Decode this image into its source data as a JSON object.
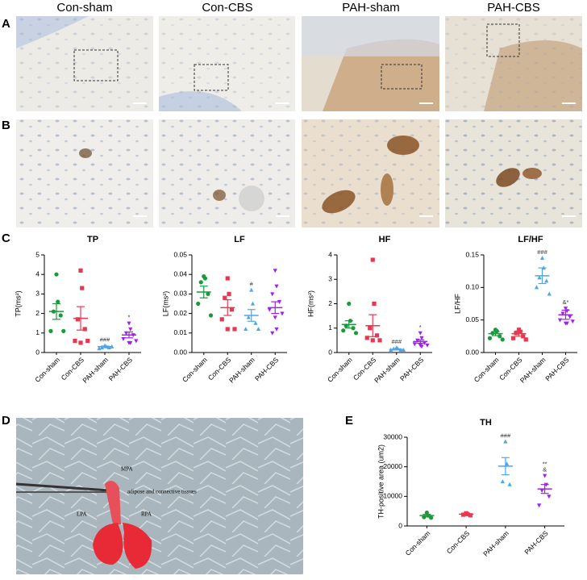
{
  "panels": {
    "letters": [
      "A",
      "B",
      "C",
      "D",
      "E"
    ],
    "columns": [
      "Con-sham",
      "Con-CBS",
      "PAH-sham",
      "PAH-CBS"
    ],
    "photo_labels": [
      "MPA",
      "adipose and connective tissues",
      "LPA",
      "RPA"
    ]
  },
  "chart_data": [
    {
      "type": "dotplot",
      "title": "TP",
      "y_label": "TP(ms²)",
      "ylim": [
        0,
        5
      ],
      "yticks": [
        0,
        1,
        2,
        3,
        4,
        5
      ],
      "series": [
        {
          "name": "Con-sham",
          "color": "#1a9a3a",
          "marker": "circle",
          "values": [
            4.0,
            2.6,
            2.1,
            1.9,
            1.1,
            1.1
          ],
          "mean": 2.1,
          "sem": 0.4
        },
        {
          "name": "Con-CBS",
          "color": "#e8384f",
          "marker": "square",
          "values": [
            4.2,
            3.3,
            1.7,
            1.2,
            0.6,
            0.6,
            0.5
          ],
          "mean": 1.75,
          "sem": 0.6
        },
        {
          "name": "PAH-sham",
          "color": "#4da6e8",
          "marker": "triangle",
          "values": [
            0.35,
            0.3,
            0.25,
            0.25,
            0.2,
            0.3
          ],
          "mean": 0.3,
          "sem": 0.03,
          "annotation": [
            "###"
          ]
        },
        {
          "name": "PAH-CBS",
          "color": "#a020f0",
          "marker": "triangle-down",
          "values": [
            1.5,
            1.2,
            1.0,
            0.9,
            0.7,
            0.6,
            0.5,
            0.5
          ],
          "mean": 0.9,
          "sem": 0.15,
          "annotation": [
            "*"
          ]
        }
      ]
    },
    {
      "type": "dotplot",
      "title": "LF",
      "y_label": "LF(ms²)",
      "ylim": [
        0,
        0.05
      ],
      "yticks": [
        {
          "value": 0,
          "label": "0.00"
        },
        {
          "value": 0.01,
          "label": "0.01"
        },
        {
          "value": 0.02,
          "label": "0.02"
        },
        {
          "value": 0.03,
          "label": "0.03"
        },
        {
          "value": 0.04,
          "label": "0.04"
        },
        {
          "value": 0.05,
          "label": "0.05"
        }
      ],
      "series": [
        {
          "name": "Con-sham",
          "color": "#1a9a3a",
          "marker": "circle",
          "values": [
            0.039,
            0.038,
            0.036,
            0.03,
            0.025,
            0.019
          ],
          "mean": 0.031,
          "sem": 0.003
        },
        {
          "name": "Con-CBS",
          "color": "#e8384f",
          "marker": "square",
          "values": [
            0.038,
            0.03,
            0.028,
            0.022,
            0.017,
            0.012,
            0.012
          ],
          "mean": 0.023,
          "sem": 0.004
        },
        {
          "name": "PAH-sham",
          "color": "#4da6e8",
          "marker": "triangle",
          "values": [
            0.032,
            0.025,
            0.018,
            0.015,
            0.012,
            0.012
          ],
          "mean": 0.019,
          "sem": 0.003,
          "annotation": [
            "#"
          ]
        },
        {
          "name": "PAH-CBS",
          "color": "#a020f0",
          "marker": "triangle-down",
          "values": [
            0.042,
            0.034,
            0.03,
            0.026,
            0.022,
            0.02,
            0.018,
            0.012,
            0.01
          ],
          "mean": 0.023,
          "sem": 0.003
        }
      ]
    },
    {
      "type": "dotplot",
      "title": "HF",
      "y_label": "HF(ms²)",
      "ylim": [
        0,
        4
      ],
      "yticks": [
        0,
        1,
        2,
        3,
        4
      ],
      "series": [
        {
          "name": "Con-sham",
          "color": "#1a9a3a",
          "marker": "circle",
          "values": [
            2.0,
            1.3,
            1.1,
            1.0,
            0.9,
            0.8
          ],
          "mean": 1.15,
          "sem": 0.15
        },
        {
          "name": "Con-CBS",
          "color": "#e8384f",
          "marker": "square",
          "values": [
            3.8,
            2.0,
            1.0,
            0.7,
            0.6,
            0.5,
            0.5
          ],
          "mean": 1.1,
          "sem": 0.45
        },
        {
          "name": "PAH-sham",
          "color": "#4da6e8",
          "marker": "triangle",
          "values": [
            0.2,
            0.15,
            0.15,
            0.1,
            0.1,
            0.1
          ],
          "mean": 0.13,
          "sem": 0.02,
          "annotation": [
            "###"
          ]
        },
        {
          "name": "PAH-CBS",
          "color": "#a020f0",
          "marker": "triangle-down",
          "values": [
            0.8,
            0.6,
            0.5,
            0.4,
            0.35,
            0.3,
            0.3,
            0.25
          ],
          "mean": 0.45,
          "sem": 0.07,
          "annotation": [
            "*"
          ]
        }
      ]
    },
    {
      "type": "dotplot",
      "title": "LF/HF",
      "y_label": "LF/HF",
      "ylim": [
        0,
        0.15
      ],
      "yticks": [
        {
          "value": 0,
          "label": "0.00"
        },
        {
          "value": 0.05,
          "label": "0.05"
        },
        {
          "value": 0.1,
          "label": "0.10"
        },
        {
          "value": 0.15,
          "label": "0.15"
        }
      ],
      "series": [
        {
          "name": "Con-sham",
          "color": "#1a9a3a",
          "marker": "circle",
          "values": [
            0.035,
            0.033,
            0.03,
            0.025,
            0.022,
            0.02
          ],
          "mean": 0.029,
          "sem": 0.003
        },
        {
          "name": "Con-CBS",
          "color": "#e8384f",
          "marker": "square",
          "values": [
            0.035,
            0.032,
            0.03,
            0.025,
            0.022,
            0.02
          ],
          "mean": 0.029,
          "sem": 0.004
        },
        {
          "name": "PAH-sham",
          "color": "#4da6e8",
          "marker": "triangle",
          "values": [
            0.145,
            0.13,
            0.115,
            0.11,
            0.1,
            0.09
          ],
          "mean": 0.118,
          "sem": 0.012,
          "annotation": [
            "###"
          ]
        },
        {
          "name": "PAH-CBS",
          "color": "#a020f0",
          "marker": "triangle-down",
          "values": [
            0.068,
            0.064,
            0.06,
            0.055,
            0.05,
            0.048,
            0.045,
            0.045
          ],
          "mean": 0.058,
          "sem": 0.007,
          "annotation": [
            "&*"
          ]
        }
      ]
    },
    {
      "type": "dotplot",
      "title": "TH",
      "y_label": "TH-positive area (um2)",
      "ylim": [
        0,
        30000
      ],
      "yticks": [
        0,
        10000,
        20000,
        30000
      ],
      "series": [
        {
          "name": "Con-sham",
          "color": "#1a9a3a",
          "marker": "circle",
          "values": [
            4500,
            3500,
            3000,
            2800
          ],
          "mean": 3500,
          "sem": 400
        },
        {
          "name": "Con-CBS",
          "color": "#e8384f",
          "marker": "square",
          "values": [
            4300,
            4000,
            3800,
            3600
          ],
          "mean": 4000,
          "sem": 200
        },
        {
          "name": "PAH-sham",
          "color": "#4da6e8",
          "marker": "triangle",
          "values": [
            28500,
            21000,
            15000,
            14000
          ],
          "mean": 20200,
          "sem": 2900,
          "annotation": [
            "###"
          ]
        },
        {
          "name": "PAH-CBS",
          "color": "#a020f0",
          "marker": "triangle-down",
          "values": [
            17000,
            14000,
            12000,
            10000,
            7000
          ],
          "mean": 12500,
          "sem": 1500,
          "annotation": [
            "**",
            "&"
          ]
        }
      ]
    }
  ]
}
